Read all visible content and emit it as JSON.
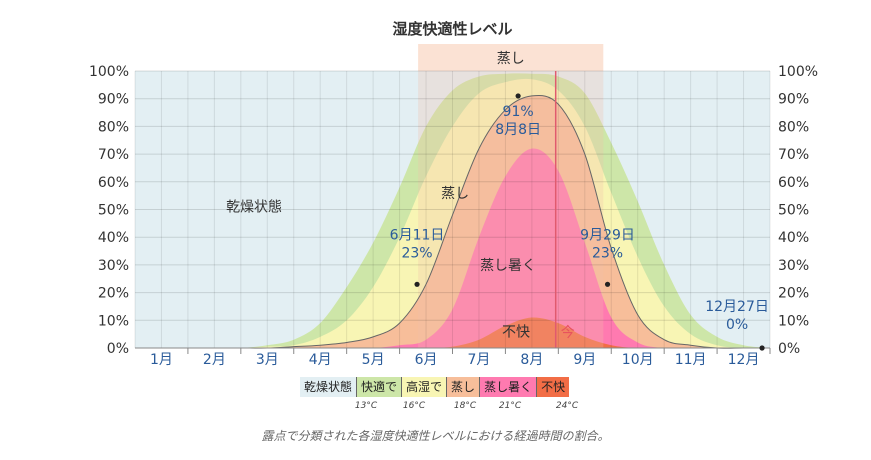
{
  "chart_data": {
    "type": "area",
    "title": "湿度快適性レベル",
    "xlabel": "",
    "ylabel": "",
    "ylim": [
      0,
      100
    ],
    "y_ticks": [
      "0%",
      "10%",
      "20%",
      "30%",
      "40%",
      "50%",
      "60%",
      "70%",
      "80%",
      "90%",
      "100%"
    ],
    "months": [
      "1月",
      "2月",
      "3月",
      "4月",
      "5月",
      "6月",
      "7月",
      "8月",
      "9月",
      "10月",
      "11月",
      "12月"
    ],
    "grid": true,
    "x": [
      0,
      0.5,
      1,
      1.5,
      2,
      2.5,
      3,
      3.5,
      4,
      4.5,
      5,
      5.5,
      6,
      6.5,
      7,
      7.5,
      8,
      8.5,
      9,
      9.5,
      10,
      10.5,
      11,
      11.5,
      12
    ],
    "bands": [
      {
        "name": "乾燥状態",
        "color": "#e3eff3",
        "upper": [
          100,
          100,
          100,
          100,
          100,
          100,
          100,
          100,
          100,
          100,
          100,
          100,
          100,
          100,
          100,
          100,
          100,
          100,
          100,
          100,
          100,
          100,
          100,
          100,
          100
        ]
      },
      {
        "name": "快適で",
        "color": "#cde6a8",
        "upper": [
          0,
          0,
          0,
          0,
          0,
          1,
          3,
          9,
          22,
          38,
          58,
          80,
          93,
          98,
          99,
          99,
          98,
          92,
          74,
          53,
          30,
          12,
          4,
          1,
          0
        ]
      },
      {
        "name": "高湿で",
        "color": "#f8f5b4",
        "upper": [
          0,
          0,
          0,
          0,
          0,
          0.5,
          1,
          4,
          10,
          22,
          40,
          62,
          80,
          92,
          96,
          97,
          93,
          80,
          56,
          33,
          15,
          5,
          1,
          0,
          0
        ]
      },
      {
        "name": "蒸し",
        "color": "#f7be9a",
        "upper": [
          0,
          0,
          0,
          0,
          0,
          0,
          0.5,
          1,
          2,
          4,
          9,
          23,
          48,
          72,
          86,
          91,
          88,
          70,
          36,
          12,
          3,
          1,
          0,
          0,
          0
        ]
      },
      {
        "name": "蒸し暑く",
        "color": "#ff7ab0",
        "upper": [
          0,
          0,
          0,
          0,
          0,
          0,
          0,
          0,
          0,
          0,
          1,
          3,
          14,
          40,
          62,
          72,
          64,
          38,
          11,
          2,
          0,
          0,
          0,
          0,
          0
        ]
      },
      {
        "name": "不快",
        "color": "#f26d46",
        "upper": [
          0,
          0,
          0,
          0,
          0,
          0,
          0,
          0,
          0,
          0,
          0,
          0,
          0.5,
          3,
          8,
          11,
          9,
          4,
          1,
          0,
          0,
          0,
          0,
          0,
          0
        ]
      }
    ],
    "muggy_season": {
      "label": "蒸し",
      "start_month": 5.35,
      "end_month": 8.85
    },
    "today_marker": {
      "label": "今",
      "month": 7.95
    },
    "annotations": [
      {
        "x": 5.33,
        "y": 23,
        "date": "6月11日",
        "value": "23%"
      },
      {
        "x": 7.24,
        "y": 91,
        "date": "8月8日",
        "value": "91%"
      },
      {
        "x": 8.93,
        "y": 23,
        "date": "9月29日",
        "value": "23%"
      },
      {
        "x": 11.85,
        "y": 0,
        "date": "12月27日",
        "value": "0%"
      }
    ],
    "band_labels": [
      "乾燥状態",
      "蒸し",
      "蒸し暑く",
      "不快"
    ],
    "legend": [
      {
        "label": "乾燥状態",
        "color": "#e3eff3"
      },
      {
        "label": "快適で",
        "color": "#cde6a8"
      },
      {
        "label": "高湿で",
        "color": "#f8f5b4"
      },
      {
        "label": "蒸し",
        "color": "#f7be9a"
      },
      {
        "label": "蒸し暑く",
        "color": "#ff7ab0"
      },
      {
        "label": "不快",
        "color": "#f26d46"
      }
    ],
    "thresholds": [
      "13°C",
      "16°C",
      "18°C",
      "21°C",
      "24°C"
    ],
    "caption": "露点で分類された各湿度快適性レベルにおける経過時間の割合。"
  }
}
